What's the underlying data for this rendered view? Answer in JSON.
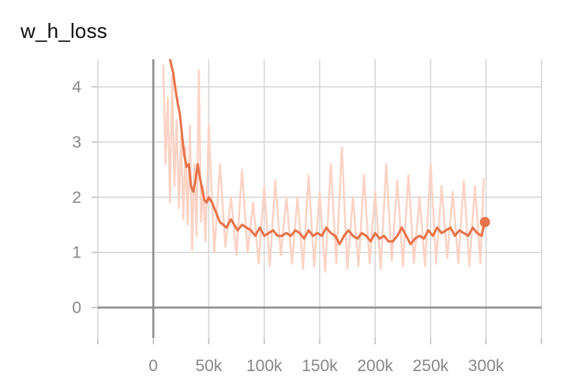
{
  "chart_data": {
    "type": "line",
    "title": "w_h_loss",
    "xlabel": "",
    "ylabel": "",
    "xlim": [
      -50000,
      350000
    ],
    "ylim": [
      -0.55,
      4.5
    ],
    "x_ticks": [
      0,
      50000,
      100000,
      150000,
      200000,
      250000,
      300000
    ],
    "x_tick_labels": [
      "0",
      "50k",
      "100k",
      "150k",
      "200k",
      "250k",
      "300k"
    ],
    "y_ticks": [
      0,
      1,
      2,
      3,
      4
    ],
    "y_tick_labels": [
      "0",
      "1",
      "2",
      "3",
      "4"
    ],
    "grid": true,
    "colors": {
      "smoothed": "#e8734a",
      "raw": "#fbd3c5"
    },
    "series": [
      {
        "role": "raw",
        "x": [
          9000,
          11000,
          13000,
          15000,
          17000,
          19000,
          21000,
          23000,
          25000,
          27000,
          29000,
          31000,
          33000,
          35000,
          37000,
          39000,
          41000,
          43000,
          45000,
          47000,
          50000,
          55000,
          60000,
          65000,
          70000,
          75000,
          80000,
          85000,
          90000,
          95000,
          100000,
          105000,
          110000,
          115000,
          120000,
          125000,
          130000,
          135000,
          140000,
          145000,
          150000,
          155000,
          160000,
          165000,
          170000,
          175000,
          180000,
          185000,
          190000,
          195000,
          200000,
          205000,
          210000,
          215000,
          220000,
          225000,
          230000,
          235000,
          240000,
          245000,
          250000,
          255000,
          260000,
          265000,
          270000,
          275000,
          280000,
          285000,
          290000,
          295000,
          298000
        ],
        "y": [
          4.4,
          2.6,
          3.8,
          1.9,
          4.2,
          2.2,
          3.4,
          1.8,
          3.1,
          1.6,
          2.9,
          1.5,
          3.3,
          1.05,
          2.6,
          1.3,
          4.3,
          1.55,
          2.2,
          1.2,
          3.3,
          1.0,
          2.6,
          1.1,
          2.0,
          0.95,
          2.5,
          1.0,
          1.9,
          0.8,
          2.2,
          0.75,
          2.3,
          0.95,
          2.0,
          0.8,
          2.0,
          0.7,
          2.4,
          0.75,
          2.1,
          0.65,
          2.6,
          0.8,
          2.9,
          0.7,
          2.0,
          0.75,
          2.4,
          0.8,
          2.1,
          0.7,
          2.6,
          0.85,
          2.3,
          0.75,
          2.4,
          0.8,
          2.0,
          0.75,
          2.6,
          0.8,
          2.2,
          0.9,
          2.1,
          0.8,
          2.3,
          0.75,
          2.2,
          0.8,
          2.35
        ]
      },
      {
        "role": "smoothed",
        "x": [
          15000,
          18000,
          20000,
          22000,
          24000,
          26000,
          28000,
          30000,
          32000,
          34000,
          36000,
          38000,
          40000,
          42000,
          44000,
          46000,
          48000,
          50000,
          53000,
          56000,
          60000,
          63000,
          66000,
          70000,
          73000,
          76000,
          80000,
          84000,
          88000,
          92000,
          96000,
          100000,
          104000,
          108000,
          112000,
          116000,
          120000,
          124000,
          128000,
          132000,
          136000,
          140000,
          144000,
          148000,
          152000,
          156000,
          160000,
          164000,
          168000,
          172000,
          176000,
          180000,
          184000,
          188000,
          192000,
          196000,
          200000,
          204000,
          208000,
          212000,
          216000,
          220000,
          224000,
          228000,
          232000,
          236000,
          240000,
          244000,
          248000,
          252000,
          256000,
          260000,
          264000,
          268000,
          272000,
          276000,
          280000,
          284000,
          288000,
          292000,
          296000,
          299000
        ],
        "y": [
          4.5,
          4.25,
          3.95,
          3.7,
          3.5,
          3.1,
          2.75,
          2.55,
          2.6,
          2.2,
          2.1,
          2.3,
          2.6,
          2.35,
          2.15,
          1.95,
          1.9,
          2.0,
          1.9,
          1.75,
          1.55,
          1.5,
          1.45,
          1.6,
          1.5,
          1.4,
          1.5,
          1.45,
          1.4,
          1.3,
          1.45,
          1.3,
          1.35,
          1.4,
          1.3,
          1.3,
          1.35,
          1.3,
          1.4,
          1.35,
          1.25,
          1.4,
          1.3,
          1.35,
          1.3,
          1.45,
          1.35,
          1.3,
          1.15,
          1.3,
          1.4,
          1.3,
          1.25,
          1.35,
          1.3,
          1.2,
          1.35,
          1.25,
          1.3,
          1.2,
          1.2,
          1.3,
          1.45,
          1.3,
          1.15,
          1.25,
          1.3,
          1.25,
          1.4,
          1.3,
          1.45,
          1.35,
          1.4,
          1.45,
          1.3,
          1.4,
          1.35,
          1.3,
          1.45,
          1.35,
          1.3,
          1.55
        ]
      }
    ],
    "last_point": {
      "x": 299000,
      "y": 1.55
    }
  }
}
